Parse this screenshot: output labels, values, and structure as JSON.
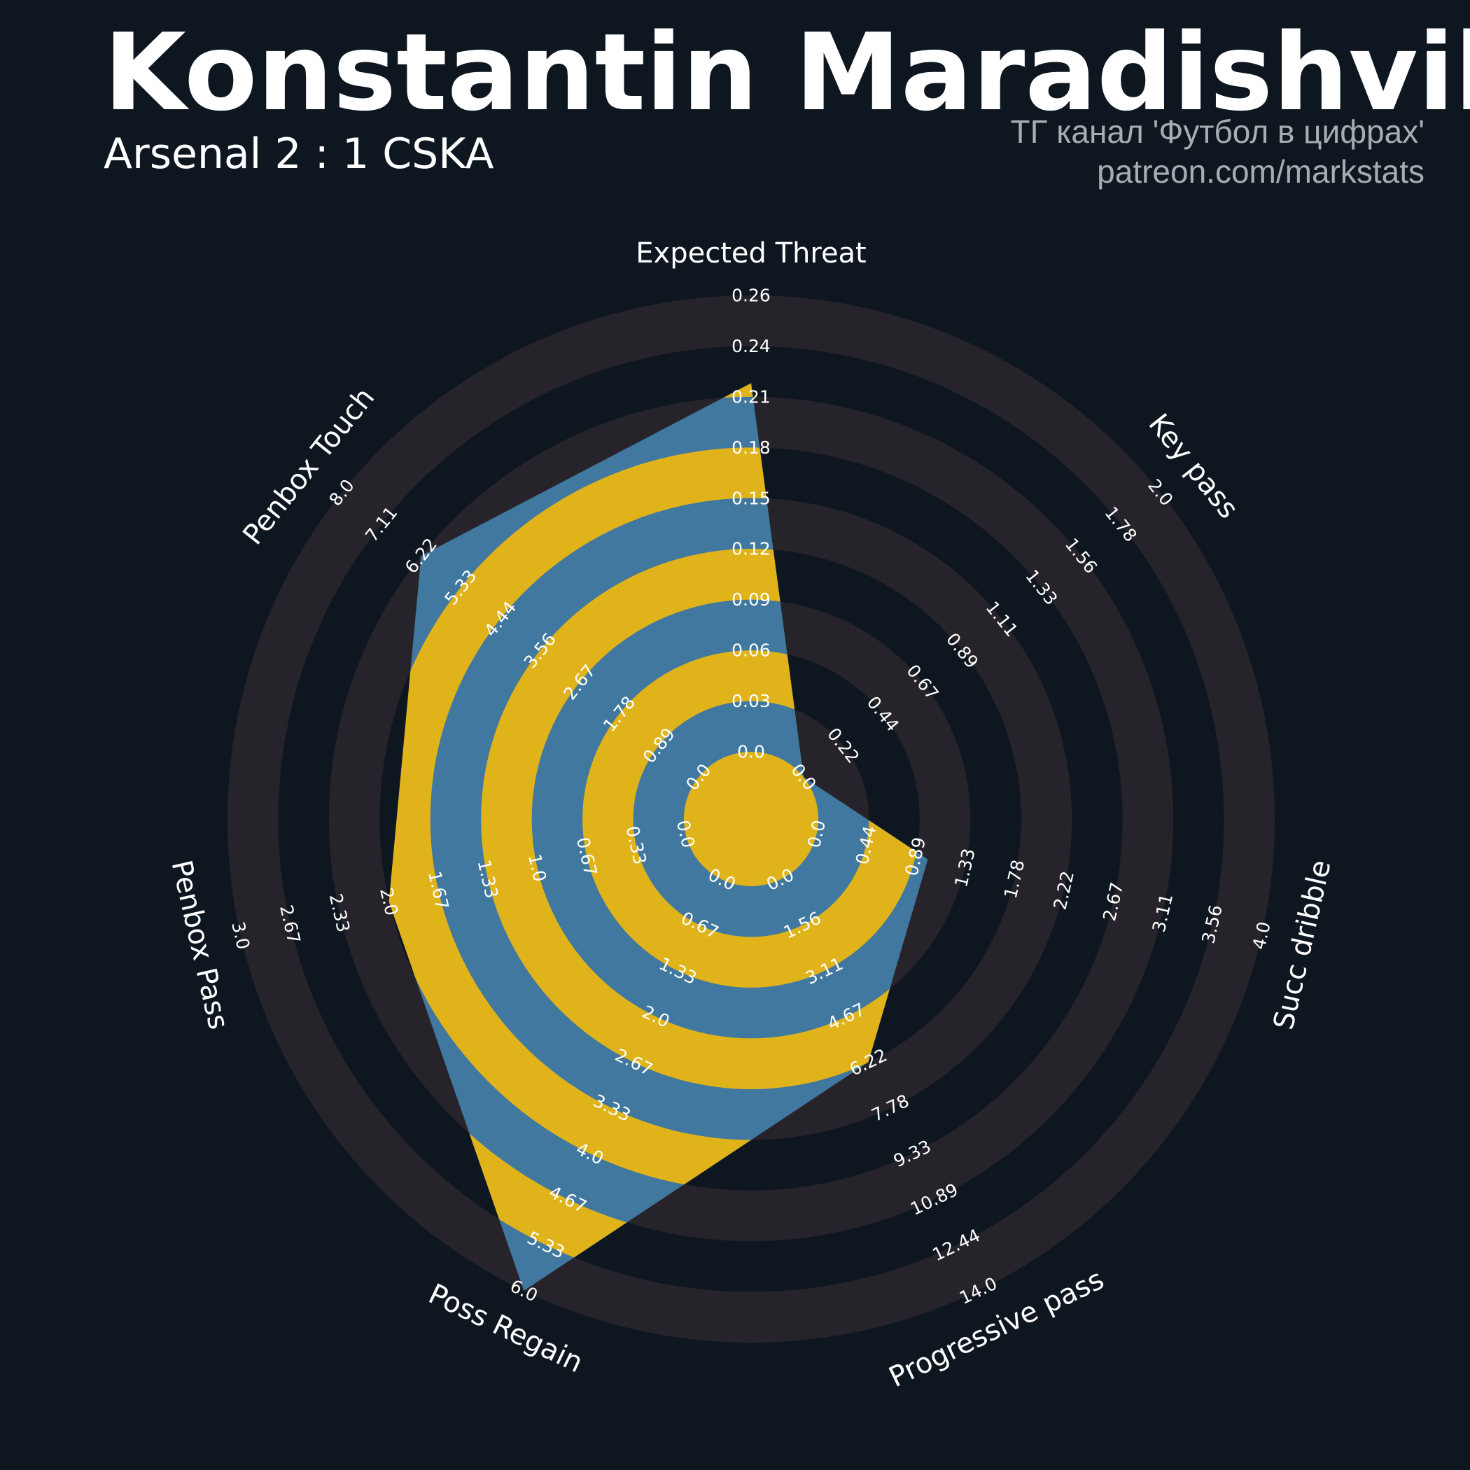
{
  "header": {
    "title": "Konstantin Maradishvili",
    "subtitle": "Arsenal 2 : 1 CSKA",
    "credit_line1": "ТГ канал 'Футбол в цифрах'",
    "credit_line2": "patreon.com/markstats"
  },
  "colors": {
    "background": "#0e1720",
    "ring_dark": "#27232a",
    "ring_fill": "#e0b31b",
    "polygon": "#41789f",
    "text": "#ffffff",
    "credit": "#a9adb2"
  },
  "chart_data": {
    "type": "radar",
    "axes": [
      {
        "label": "Expected Threat",
        "min": 0.0,
        "max": 0.26,
        "value": 0.21,
        "ticks": [
          "0.0",
          "0.03",
          "0.06",
          "0.09",
          "0.12",
          "0.15",
          "0.18",
          "0.21",
          "0.24",
          "0.26"
        ]
      },
      {
        "label": "Key pass",
        "min": 0.0,
        "max": 2.0,
        "value": 0.0,
        "ticks": [
          "0.0",
          "0.22",
          "0.44",
          "0.67",
          "0.89",
          "1.11",
          "1.33",
          "1.56",
          "1.78",
          "2.0"
        ]
      },
      {
        "label": "Succ dribble",
        "min": 0.0,
        "max": 4.0,
        "value": 1.0,
        "ticks": [
          "0.0",
          "0.44",
          "0.89",
          "1.33",
          "1.78",
          "2.22",
          "2.67",
          "3.11",
          "3.56",
          "4.0"
        ]
      },
      {
        "label": "Progressive pass",
        "min": 0.0,
        "max": 14.0,
        "value": 6.22,
        "ticks": [
          "0.0",
          "1.56",
          "3.11",
          "4.67",
          "6.22",
          "7.78",
          "9.33",
          "10.89",
          "12.44",
          "14.0"
        ]
      },
      {
        "label": "Poss Regain",
        "min": 0.0,
        "max": 6.0,
        "value": 6.0,
        "ticks": [
          "0.0",
          "0.67",
          "1.33",
          "2.0",
          "2.67",
          "3.33",
          "4.0",
          "4.67",
          "5.33",
          "6.0"
        ]
      },
      {
        "label": "Penbox Pass",
        "min": 0.0,
        "max": 3.0,
        "value": 2.0,
        "ticks": [
          "0.0",
          "0.33",
          "0.67",
          "1.0",
          "1.33",
          "1.67",
          "2.0",
          "2.33",
          "2.67",
          "3.0"
        ]
      },
      {
        "label": "Penbox Touch",
        "min": 0.0,
        "max": 8.0,
        "value": 6.22,
        "ticks": [
          "0.0",
          "0.89",
          "1.78",
          "2.67",
          "3.56",
          "4.44",
          "5.33",
          "6.22",
          "7.11",
          "8.0"
        ]
      }
    ]
  }
}
